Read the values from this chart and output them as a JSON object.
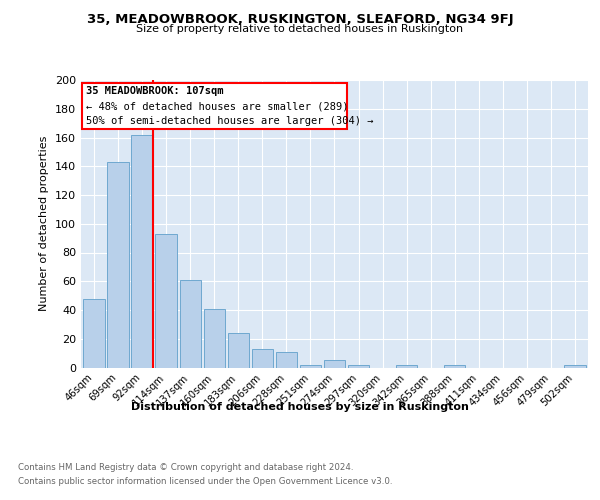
{
  "title": "35, MEADOWBROOK, RUSKINGTON, SLEAFORD, NG34 9FJ",
  "subtitle": "Size of property relative to detached houses in Ruskington",
  "xlabel": "Distribution of detached houses by size in Ruskington",
  "ylabel": "Number of detached properties",
  "categories": [
    "46sqm",
    "69sqm",
    "92sqm",
    "114sqm",
    "137sqm",
    "160sqm",
    "183sqm",
    "206sqm",
    "228sqm",
    "251sqm",
    "274sqm",
    "297sqm",
    "320sqm",
    "342sqm",
    "365sqm",
    "388sqm",
    "411sqm",
    "434sqm",
    "456sqm",
    "479sqm",
    "502sqm"
  ],
  "values": [
    48,
    143,
    162,
    93,
    61,
    41,
    24,
    13,
    11,
    2,
    5,
    2,
    0,
    2,
    0,
    2,
    0,
    0,
    0,
    0,
    2
  ],
  "bar_color": "#b8d0ea",
  "bar_edge_color": "#6fa8d0",
  "annotation_text_line1": "35 MEADOWBROOK: 107sqm",
  "annotation_text_line2": "← 48% of detached houses are smaller (289)",
  "annotation_text_line3": "50% of semi-detached houses are larger (304) →",
  "ylim": [
    0,
    200
  ],
  "yticks": [
    0,
    20,
    40,
    60,
    80,
    100,
    120,
    140,
    160,
    180,
    200
  ],
  "footer_line1": "Contains HM Land Registry data © Crown copyright and database right 2024.",
  "footer_line2": "Contains public sector information licensed under the Open Government Licence v3.0.",
  "bg_color": "#dce8f5"
}
